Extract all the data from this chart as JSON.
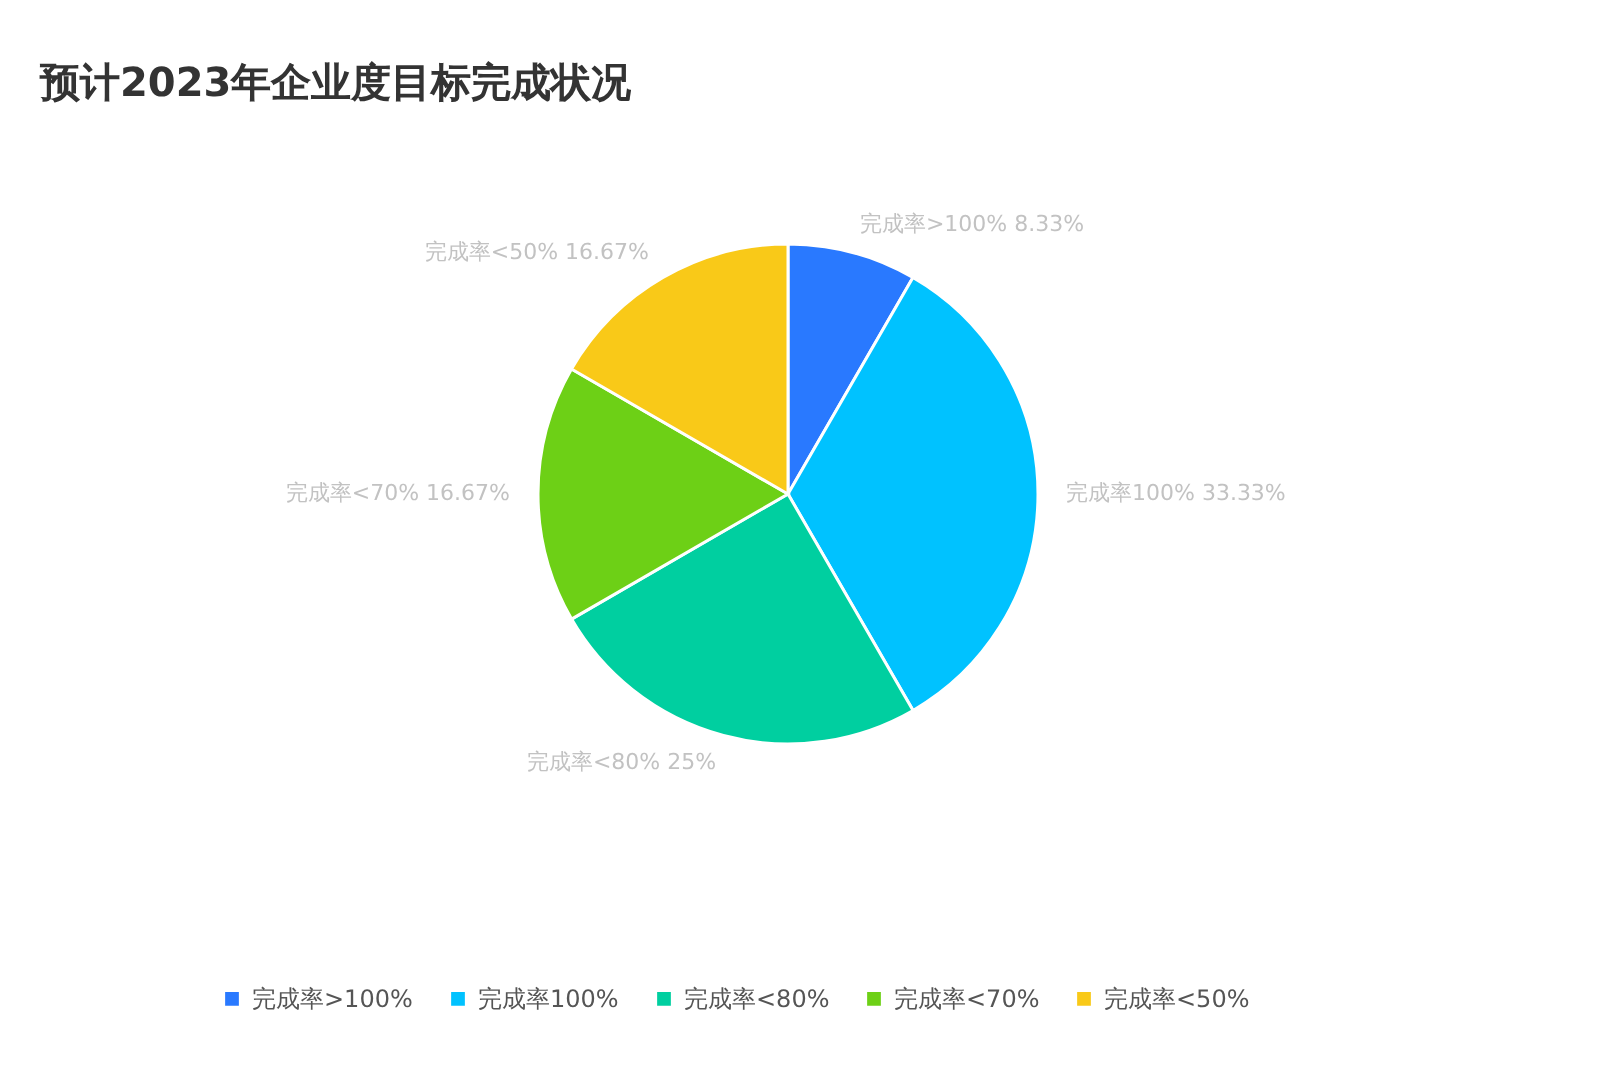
{
  "chart_data": {
    "type": "pie",
    "title": "预计2023年企业度目标完成状况",
    "categories": [
      "完成率>100%",
      "完成率100%",
      "完成率<80%",
      "完成率<70%",
      "完成率<50%"
    ],
    "values": [
      8.33,
      33.33,
      25,
      16.67,
      16.67
    ],
    "value_labels": [
      "8.33%",
      "33.33%",
      "25%",
      "16.67%",
      "16.67%"
    ],
    "colors": [
      "#2979ff",
      "#00c2ff",
      "#00cfa0",
      "#6dd016",
      "#f9c918"
    ],
    "legend": "bottom"
  }
}
